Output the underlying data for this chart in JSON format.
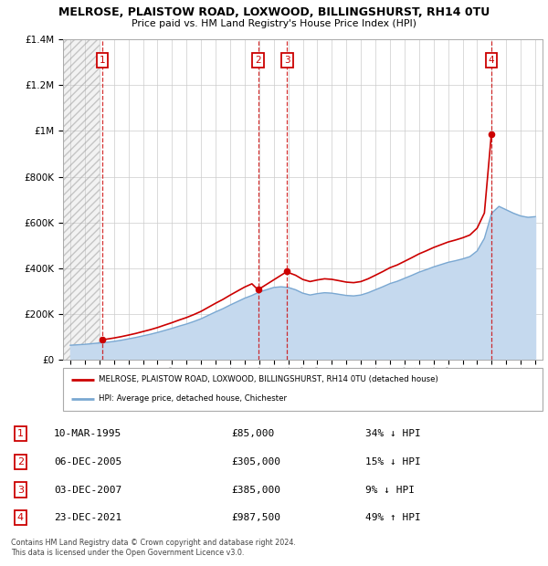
{
  "title": "MELROSE, PLAISTOW ROAD, LOXWOOD, BILLINGSHURST, RH14 0TU",
  "subtitle": "Price paid vs. HM Land Registry's House Price Index (HPI)",
  "sales": [
    {
      "label": "1",
      "date": "10-MAR-1995",
      "price": 85000,
      "pct": "34%",
      "dir": "↓"
    },
    {
      "label": "2",
      "date": "06-DEC-2005",
      "price": 305000,
      "pct": "15%",
      "dir": "↓"
    },
    {
      "label": "3",
      "date": "03-DEC-2007",
      "price": 385000,
      "pct": "9%",
      "dir": "↓"
    },
    {
      "label": "4",
      "date": "23-DEC-2021",
      "price": 987500,
      "pct": "49%",
      "dir": "↑"
    }
  ],
  "sale_years": [
    1995.19,
    2005.92,
    2007.92,
    2021.98
  ],
  "sale_prices": [
    85000,
    305000,
    385000,
    987500
  ],
  "hpi_years": [
    1993.0,
    1993.5,
    1994.0,
    1994.5,
    1995.0,
    1995.5,
    1996.0,
    1996.5,
    1997.0,
    1997.5,
    1998.0,
    1998.5,
    1999.0,
    1999.5,
    2000.0,
    2000.5,
    2001.0,
    2001.5,
    2002.0,
    2002.5,
    2003.0,
    2003.5,
    2004.0,
    2004.5,
    2005.0,
    2005.5,
    2006.0,
    2006.5,
    2007.0,
    2007.5,
    2008.0,
    2008.5,
    2009.0,
    2009.5,
    2010.0,
    2010.5,
    2011.0,
    2011.5,
    2012.0,
    2012.5,
    2013.0,
    2013.5,
    2014.0,
    2014.5,
    2015.0,
    2015.5,
    2016.0,
    2016.5,
    2017.0,
    2017.5,
    2018.0,
    2018.5,
    2019.0,
    2019.5,
    2020.0,
    2020.5,
    2021.0,
    2021.5,
    2022.0,
    2022.5,
    2023.0,
    2023.5,
    2024.0,
    2024.5,
    2025.0
  ],
  "hpi_values": [
    62000,
    64000,
    66000,
    69000,
    72000,
    75000,
    79000,
    84000,
    90000,
    96000,
    103000,
    110000,
    118000,
    127000,
    136000,
    146000,
    155000,
    166000,
    178000,
    193000,
    208000,
    222000,
    238000,
    253000,
    268000,
    280000,
    295000,
    305000,
    315000,
    318000,
    315000,
    305000,
    290000,
    282000,
    288000,
    292000,
    290000,
    285000,
    280000,
    278000,
    282000,
    292000,
    305000,
    318000,
    332000,
    342000,
    355000,
    368000,
    382000,
    393000,
    405000,
    415000,
    425000,
    432000,
    440000,
    450000,
    475000,
    530000,
    640000,
    670000,
    655000,
    640000,
    628000,
    622000,
    625000
  ],
  "red_hpi_years": [
    1995.19,
    1995.5,
    1996.0,
    1996.5,
    1997.0,
    1997.5,
    1998.0,
    1998.5,
    1999.0,
    1999.5,
    2000.0,
    2000.5,
    2001.0,
    2001.5,
    2002.0,
    2002.5,
    2003.0,
    2003.5,
    2004.0,
    2004.5,
    2005.0,
    2005.5,
    2005.92,
    2007.92,
    2008.0,
    2008.5,
    2009.0,
    2009.5,
    2010.0,
    2010.5,
    2011.0,
    2011.5,
    2012.0,
    2012.5,
    2013.0,
    2013.5,
    2014.0,
    2014.5,
    2015.0,
    2015.5,
    2016.0,
    2016.5,
    2017.0,
    2017.5,
    2018.0,
    2018.5,
    2019.0,
    2019.5,
    2020.0,
    2020.5,
    2021.0,
    2021.5,
    2021.98
  ],
  "red_hpi_values": [
    85000,
    88700,
    93700,
    99600,
    106400,
    113600,
    121900,
    130100,
    139500,
    150400,
    160900,
    172600,
    183400,
    196200,
    210400,
    228200,
    245900,
    262500,
    281400,
    299100,
    316800,
    331000,
    305000,
    385000,
    380500,
    368600,
    350000,
    340900,
    347800,
    352900,
    350500,
    344600,
    338400,
    336000,
    340800,
    353000,
    368600,
    384400,
    401500,
    413500,
    429300,
    445300,
    462000,
    475400,
    489800,
    501900,
    513900,
    522500,
    532300,
    544600,
    574500,
    641200,
    987500
  ],
  "ylim": [
    0,
    1400000
  ],
  "xlim_start": 1992.5,
  "xlim_end": 2025.5,
  "hatch_end": 1995.0,
  "legend_label_red": "MELROSE, PLAISTOW ROAD, LOXWOOD, BILLINGSHURST, RH14 0TU (detached house)",
  "legend_label_blue": "HPI: Average price, detached house, Chichester",
  "footnote": "Contains HM Land Registry data © Crown copyright and database right 2024.\nThis data is licensed under the Open Government Licence v3.0.",
  "red_color": "#cc0000",
  "blue_color": "#7aa8d2",
  "blue_fill_color": "#c5d9ee",
  "hatch_bg_color": "#e0e0e0",
  "grid_color": "#cccccc"
}
